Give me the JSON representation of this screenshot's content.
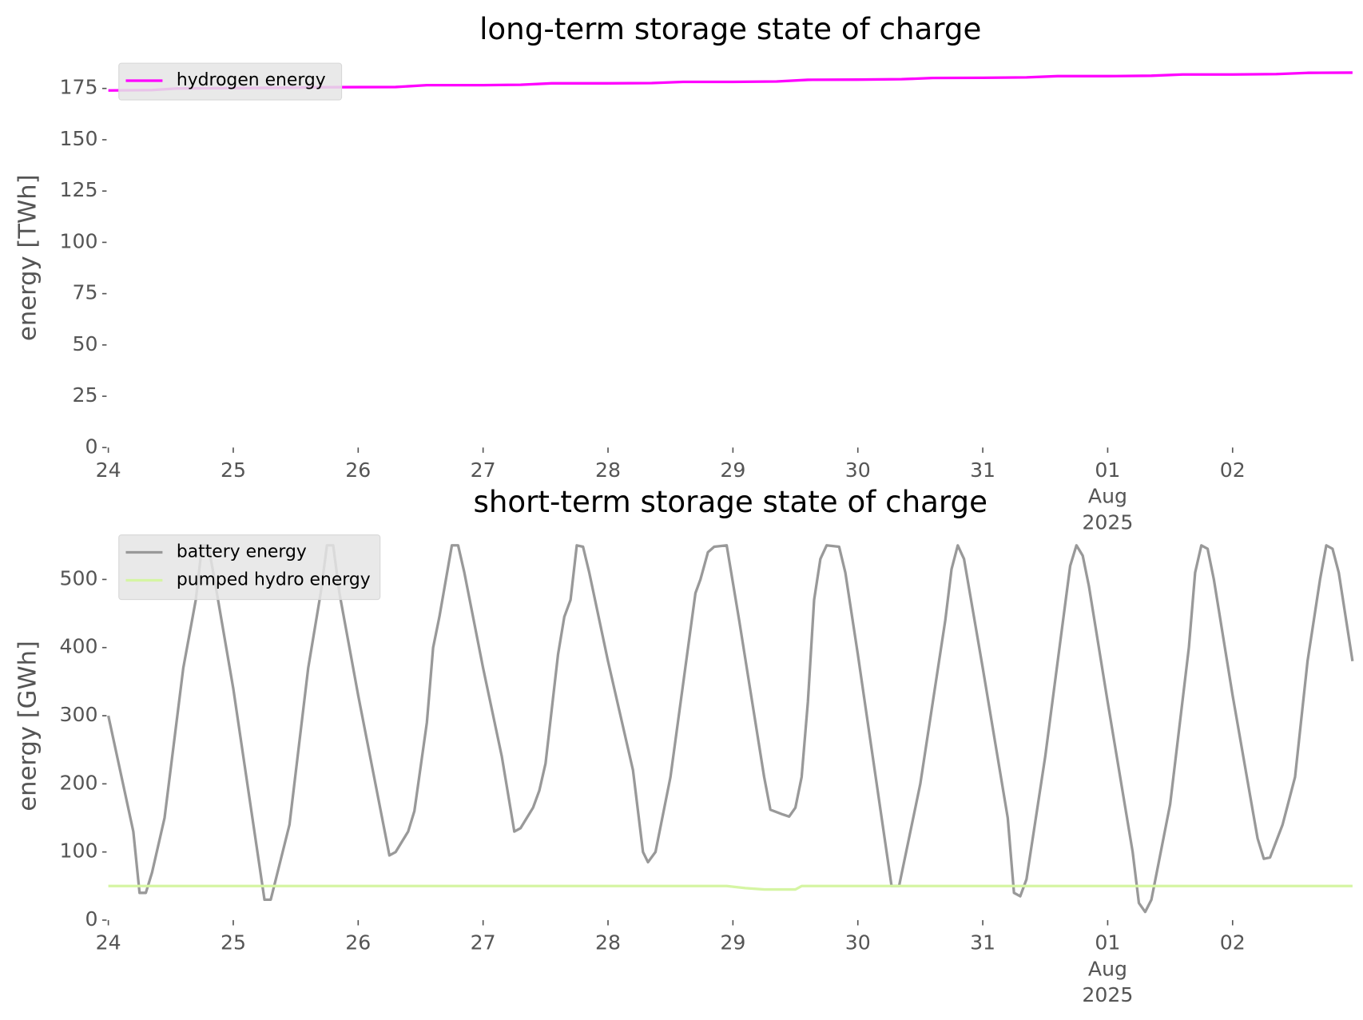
{
  "chart_data": [
    {
      "type": "line",
      "title": "long-term storage state of charge",
      "ylabel": "energy [TWh]",
      "xlim": [
        0,
        9.96
      ],
      "ylim": [
        0,
        185
      ],
      "xticks": [
        {
          "value": 0,
          "label": "24"
        },
        {
          "value": 1,
          "label": "25"
        },
        {
          "value": 2,
          "label": "26"
        },
        {
          "value": 3,
          "label": "27"
        },
        {
          "value": 4,
          "label": "28"
        },
        {
          "value": 5,
          "label": "29"
        },
        {
          "value": 6,
          "label": "30"
        },
        {
          "value": 7,
          "label": "31"
        },
        {
          "value": 8,
          "label": "01\nAug\n2025"
        },
        {
          "value": 9,
          "label": "02"
        }
      ],
      "yticks": [
        0,
        25,
        50,
        75,
        100,
        125,
        150,
        175
      ],
      "legend": "upper left",
      "series": [
        {
          "name": "hydrogen energy",
          "color": "#ff00ff",
          "x": [
            0,
            0.35,
            0.55,
            1,
            1.5,
            1.75,
            2.3,
            2.55,
            3,
            3.3,
            3.55,
            4,
            4.35,
            4.6,
            5,
            5.35,
            5.6,
            6,
            6.35,
            6.6,
            7,
            7.35,
            7.6,
            8,
            8.35,
            8.6,
            9,
            9.35,
            9.6,
            9.96
          ],
          "values": [
            174,
            174.2,
            175,
            175.2,
            175.4,
            175.6,
            175.7,
            176.6,
            176.6,
            176.8,
            177.5,
            177.5,
            177.6,
            178.2,
            178.2,
            178.4,
            179.2,
            179.3,
            179.5,
            180.1,
            180.2,
            180.4,
            181,
            181,
            181.2,
            181.8,
            181.8,
            182,
            182.6,
            182.7
          ]
        }
      ]
    },
    {
      "type": "line",
      "title": "short-term storage state of charge",
      "ylabel": "energy [GWh]",
      "xlim": [
        0,
        9.96
      ],
      "ylim": [
        0,
        570
      ],
      "xticks": [
        {
          "value": 0,
          "label": "24"
        },
        {
          "value": 1,
          "label": "25"
        },
        {
          "value": 2,
          "label": "26"
        },
        {
          "value": 3,
          "label": "27"
        },
        {
          "value": 4,
          "label": "28"
        },
        {
          "value": 5,
          "label": "29"
        },
        {
          "value": 6,
          "label": "30"
        },
        {
          "value": 7,
          "label": "31"
        },
        {
          "value": 8,
          "label": "01\nAug\n2025"
        },
        {
          "value": 9,
          "label": "02"
        }
      ],
      "yticks": [
        0,
        100,
        200,
        300,
        400,
        500
      ],
      "legend": "upper left",
      "series": [
        {
          "name": "battery energy",
          "color": "#999999",
          "x": [
            0,
            0.2,
            0.25,
            0.3,
            0.35,
            0.45,
            0.6,
            0.7,
            0.75,
            0.8,
            0.85,
            1.0,
            1.25,
            1.3,
            1.45,
            1.6,
            1.7,
            1.75,
            1.8,
            1.85,
            2.0,
            2.25,
            2.3,
            2.4,
            2.45,
            2.55,
            2.6,
            2.65,
            2.75,
            2.8,
            2.85,
            3.0,
            3.15,
            3.25,
            3.3,
            3.4,
            3.45,
            3.5,
            3.6,
            3.65,
            3.7,
            3.75,
            3.8,
            3.85,
            4.0,
            4.2,
            4.28,
            4.32,
            4.38,
            4.5,
            4.7,
            4.74,
            4.8,
            4.85,
            4.95,
            5.05,
            5.25,
            5.3,
            5.4,
            5.45,
            5.5,
            5.55,
            5.6,
            5.65,
            5.7,
            5.75,
            5.85,
            5.9,
            6.0,
            6.27,
            6.33,
            6.5,
            6.7,
            6.75,
            6.8,
            6.85,
            7.0,
            7.2,
            7.25,
            7.3,
            7.35,
            7.5,
            7.7,
            7.75,
            7.8,
            7.85,
            8.0,
            8.2,
            8.25,
            8.3,
            8.35,
            8.5,
            8.65,
            8.7,
            8.75,
            8.8,
            8.85,
            9.0,
            9.2,
            9.25,
            9.3,
            9.4,
            9.5,
            9.6,
            9.65,
            9.7,
            9.75,
            9.8,
            9.85,
            9.96
          ],
          "values": [
            300,
            130,
            40,
            40,
            70,
            150,
            370,
            470,
            550,
            550,
            500,
            340,
            30,
            30,
            140,
            370,
            480,
            550,
            550,
            480,
            330,
            95,
            100,
            130,
            160,
            290,
            400,
            445,
            550,
            550,
            510,
            370,
            240,
            130,
            135,
            165,
            190,
            230,
            390,
            445,
            470,
            550,
            548,
            510,
            380,
            220,
            100,
            85,
            100,
            210,
            480,
            500,
            540,
            548,
            550,
            440,
            210,
            162,
            155,
            152,
            165,
            210,
            320,
            470,
            530,
            550,
            548,
            510,
            390,
            50,
            50,
            200,
            440,
            515,
            550,
            530,
            370,
            150,
            40,
            35,
            60,
            240,
            520,
            550,
            535,
            490,
            320,
            100,
            25,
            12,
            30,
            170,
            400,
            510,
            550,
            545,
            500,
            330,
            120,
            90,
            92,
            140,
            210,
            380,
            440,
            500,
            550,
            545,
            510,
            380
          ]
        },
        {
          "name": "pumped hydro energy",
          "color": "#d5f5a3",
          "x": [
            0,
            4.95,
            5.1,
            5.25,
            5.5,
            5.55,
            9.96
          ],
          "values": [
            50,
            50,
            47,
            45,
            45,
            50,
            50
          ]
        }
      ]
    }
  ]
}
